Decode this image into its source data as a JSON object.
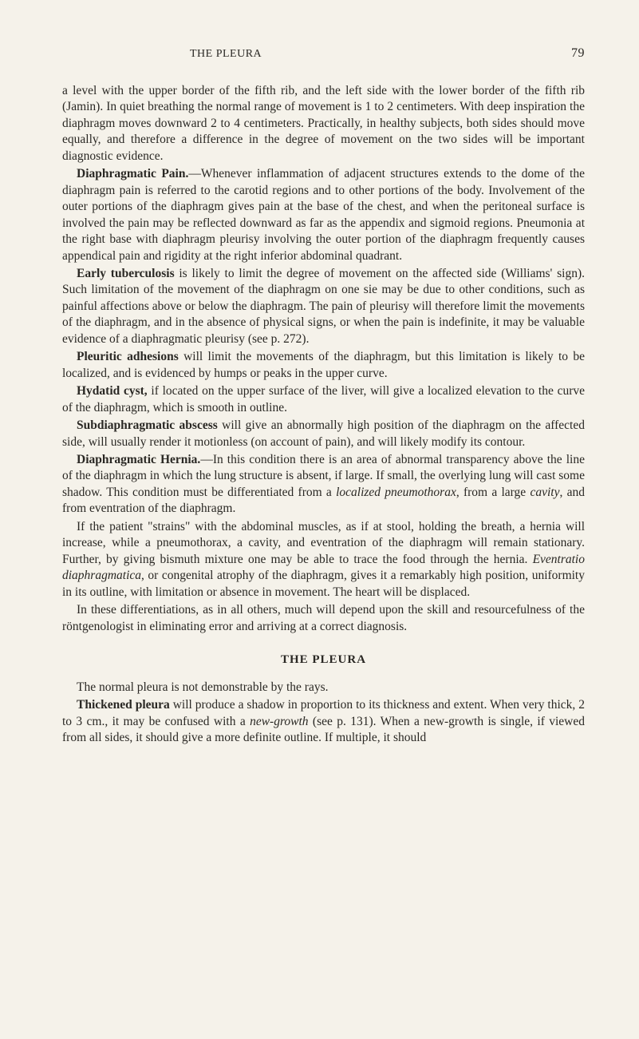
{
  "colors": {
    "background": "#f5f2ea",
    "text": "#2a2824"
  },
  "typography": {
    "body_fontsize": 15.5,
    "header_fontsize": 14,
    "pagenum_fontsize": 16,
    "font_family": "Georgia, Times New Roman, serif",
    "line_height": 1.32
  },
  "header": {
    "title": "THE PLEURA",
    "page_number": "79"
  },
  "paragraphs": {
    "p1": "a level with the upper border of the fifth rib, and the left side with the lower border of the fifth rib (Jamin). In quiet breathing the normal range of movement is 1 to 2 centimeters. With deep inspiration the diaphragm moves downward 2 to 4 centimeters. Practically, in healthy subjects, both sides should move equally, and therefore a difference in the degree of movement on the two sides will be important diagnostic evidence.",
    "p2_lead": "Diaphragmatic Pain.",
    "p2": "—Whenever inflammation of adjacent structures extends to the dome of the diaphragm pain is referred to the carotid regions and to other portions of the body. Involvement of the outer portions of the diaphragm gives pain at the base of the chest, and when the peritoneal surface is involved the pain may be reflected downward as far as the appendix and sigmoid regions. Pneumonia at the right base with diaphragm pleurisy involving the outer portion of the diaphragm frequently causes appendical pain and rigidity at the right inferior abdominal quadrant.",
    "p3_lead": "Early tuberculosis",
    "p3": " is likely to limit the degree of movement on the affected side (Williams' sign). Such limitation of the movement of the diaphragm on one sie may be due to other conditions, such as painful affections above or below the diaphragm. The pain of pleurisy will therefore limit the movements of the diaphragm, and in the absence of physical signs, or when the pain is indefinite, it may be valuable evidence of a diaphragmatic pleurisy (see p. 272).",
    "p4_lead": "Pleuritic adhesions",
    "p4": " will limit the movements of the diaphragm, but this limitation is likely to be localized, and is evidenced by humps or peaks in the upper curve.",
    "p5_lead": "Hydatid cyst,",
    "p5": " if located on the upper surface of the liver, will give a localized elevation to the curve of the diaphragm, which is smooth in outline.",
    "p6_lead": "Subdiaphragmatic abscess",
    "p6": " will give an abnormally high position of the diaphragm on the affected side, will usually render it motionless (on account of pain), and will likely modify its contour.",
    "p7_lead": "Diaphragmatic Hernia.",
    "p7a": "—In this condition there is an area of abnormal transparency above the line of the diaphragm in which the lung structure is absent, if large. If small, the overlying lung will cast some shadow. This condition must be differentiated from a ",
    "p7_italic1": "localized pneumothorax",
    "p7b": ", from a large ",
    "p7_italic2": "cavity",
    "p7c": ", and from eventration of the diaphragm.",
    "p8a": "If the patient \"strains\" with the abdominal muscles, as if at stool, holding the breath, a hernia will increase, while a pneumothorax, a cavity, and eventration of the diaphragm will remain stationary. Further, by giving bismuth mixture one may be able to trace the food through the hernia. ",
    "p8_italic": "Eventratio diaphragmatica",
    "p8b": ", or congenital atrophy of the diaphragm, gives it a remarkably high position, uniformity in its outline, with limitation or absence in movement. The heart will be displaced.",
    "p9": "In these differentiations, as in all others, much will depend upon the skill and resourcefulness of the röntgenologist in eliminating error and arriving at a correct diagnosis.",
    "section_heading": "THE PLEURA",
    "p10": "The normal pleura is not demonstrable by the rays.",
    "p11_lead": "Thickened pleura",
    "p11a": " will produce a shadow in proportion to its thickness and extent. When very thick, 2 to 3 cm., it may be confused with a ",
    "p11_italic": "new-growth",
    "p11b": " (see p. 131). When a new-growth is single, if viewed from all sides, it should give a more definite outline. If multiple, it should"
  }
}
